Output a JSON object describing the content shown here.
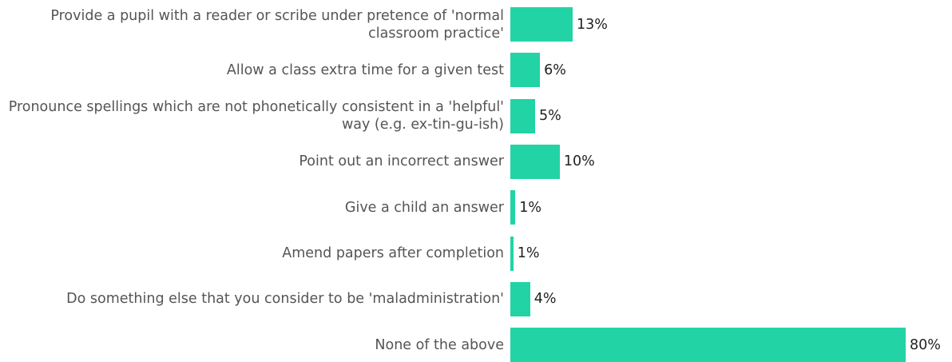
{
  "chart_data": {
    "type": "bar",
    "orientation": "horizontal",
    "categories": [
      "Provide a pupil with a reader or scribe under pretence of 'normal classroom practice'",
      "Allow a class extra time for a given test",
      "Pronounce spellings which are not phonetically consistent in a 'helpful' way (e.g. ex-tin-gu-ish)",
      "Point out an incorrect answer",
      "Give a child an answer",
      "Amend papers after completion",
      "Do something else that you consider to be 'maladministration'",
      "None of the above"
    ],
    "values": [
      12.6,
      6,
      5,
      10,
      1,
      0.6,
      4,
      80
    ],
    "value_labels": [
      "13%",
      "6%",
      "5%",
      "10%",
      "1%",
      "1%",
      "4%",
      "80%"
    ],
    "color": "#22d3a6",
    "xlim": [
      0,
      80
    ]
  }
}
